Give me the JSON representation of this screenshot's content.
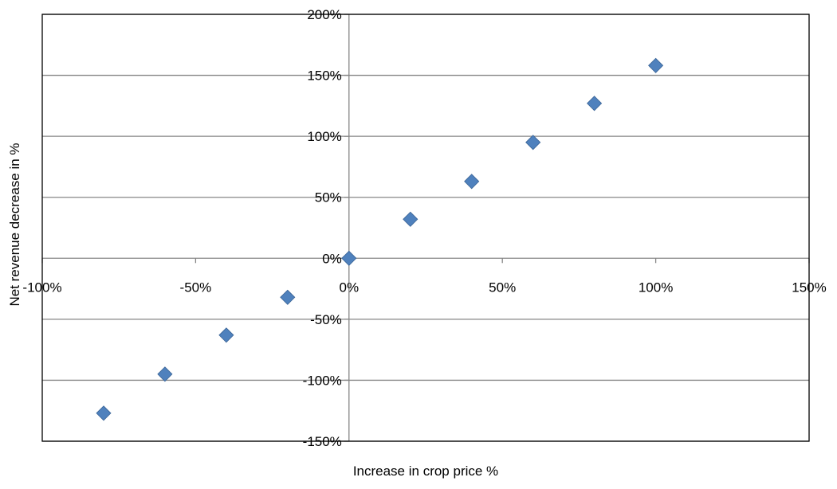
{
  "chart_data": {
    "type": "scatter",
    "title": "",
    "xlabel": "Increase in crop price %",
    "ylabel": "Net revenue decrease in %",
    "xlim": [
      -100,
      150
    ],
    "ylim": [
      -150,
      200
    ],
    "x_ticks": [
      -100,
      -50,
      0,
      50,
      100,
      150
    ],
    "x_tick_labels": [
      "-100%",
      "-50%",
      "0%",
      "50%",
      "100%",
      "150%"
    ],
    "y_ticks": [
      -150,
      -100,
      -50,
      0,
      50,
      100,
      150,
      200
    ],
    "y_tick_labels": [
      "-150%",
      "-100%",
      "-50%",
      "0%",
      "50%",
      "100%",
      "150%",
      "200%"
    ],
    "grid": true,
    "legend": "none",
    "marker": "diamond",
    "marker_color": "#4F81BD",
    "series": [
      {
        "x": [
          -80,
          -60,
          -40,
          -20,
          0,
          20,
          40,
          60,
          80,
          100
        ],
        "y": [
          -127,
          -95,
          -63,
          -32,
          0,
          32,
          63,
          95,
          127,
          158
        ]
      }
    ]
  }
}
